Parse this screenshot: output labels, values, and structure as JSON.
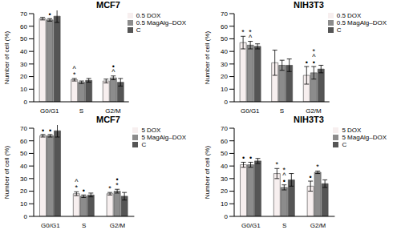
{
  "chart_data": [
    {
      "type": "bar",
      "title": "MCF7",
      "y_label": "Number of cell (%)",
      "categories": [
        "G0/G1",
        "S",
        "G2/M"
      ],
      "ylim": [
        0,
        70
      ],
      "yticks": [
        0,
        10,
        20,
        30,
        40,
        50,
        60,
        70
      ],
      "grid": false,
      "legend": "top-right",
      "series": [
        {
          "name": "0.5 DOX",
          "color": "#f7efef",
          "values": [
            66,
            17.5,
            16.5
          ],
          "errors": [
            1,
            1,
            1.5
          ],
          "annotations": [
            [],
            [
              "*",
              "^"
            ],
            []
          ]
        },
        {
          "name": "0.5 MagAlg–DOX",
          "color": "#8c8c8c",
          "values": [
            65,
            15.5,
            19
          ],
          "errors": [
            1,
            1,
            1.5
          ],
          "annotations": [
            [
              "•"
            ],
            [],
            [
              "^",
              "•"
            ]
          ]
        },
        {
          "name": "C",
          "color": "#555555",
          "values": [
            68,
            17,
            15.5
          ],
          "errors": [
            5,
            1.5,
            3
          ],
          "annotations": [
            [],
            [],
            []
          ]
        }
      ]
    },
    {
      "type": "bar",
      "title": "NIH3T3",
      "y_label": "Number of cell (%)",
      "categories": [
        "G0/G1",
        "S",
        "G2/M"
      ],
      "ylim": [
        0,
        70
      ],
      "yticks": [
        0,
        10,
        20,
        30,
        40,
        50,
        60,
        70
      ],
      "grid": false,
      "legend": "top-right",
      "series": [
        {
          "name": "0.5 DOX",
          "color": "#f7efef",
          "values": [
            47,
            31,
            21
          ],
          "errors": [
            5,
            10,
            7
          ],
          "annotations": [
            [
              "*"
            ],
            [],
            [
              "•"
            ]
          ]
        },
        {
          "name": "0.5 MagAlg–DOX",
          "color": "#8c8c8c",
          "values": [
            45,
            29,
            23
          ],
          "errors": [
            3,
            4,
            5
          ],
          "annotations": [
            [
              "^",
              "*"
            ],
            [],
            [
              "•",
              "^",
              "*"
            ]
          ]
        },
        {
          "name": "C",
          "color": "#555555",
          "values": [
            44,
            29,
            26
          ],
          "errors": [
            2,
            5,
            3
          ],
          "annotations": [
            [],
            [],
            []
          ]
        }
      ]
    },
    {
      "type": "bar",
      "title": "MCF7",
      "y_label": "Number of cell (%)",
      "categories": [
        "G0/G1",
        "S",
        "G2/M"
      ],
      "ylim": [
        0,
        70
      ],
      "yticks": [
        0,
        10,
        20,
        30,
        40,
        50,
        60,
        70
      ],
      "grid": false,
      "legend": "top-right",
      "series": [
        {
          "name": "5 DOX",
          "color": "#f7efef",
          "values": [
            64,
            18,
            18
          ],
          "errors": [
            1,
            1.5,
            1
          ],
          "annotations": [
            [
              "•"
            ],
            [
              "*",
              "^"
            ],
            [
              "*"
            ]
          ]
        },
        {
          "name": "5 MagAlg–DOX",
          "color": "#8c8c8c",
          "values": [
            64,
            16,
            20
          ],
          "errors": [
            1,
            1,
            1.5
          ],
          "annotations": [
            [
              "•"
            ],
            [
              "•"
            ],
            [
              "*",
              "•"
            ]
          ]
        },
        {
          "name": "C",
          "color": "#555555",
          "values": [
            68,
            17,
            16
          ],
          "errors": [
            5,
            1.5,
            3
          ],
          "annotations": [
            [],
            [],
            []
          ]
        }
      ]
    },
    {
      "type": "bar",
      "title": "NIH3T3",
      "y_label": "Number of cell (%)",
      "categories": [
        "G0/G1",
        "S",
        "G2/M"
      ],
      "ylim": [
        0,
        70
      ],
      "yticks": [
        0,
        10,
        20,
        30,
        40,
        50,
        60,
        70
      ],
      "grid": false,
      "legend": "top-right",
      "series": [
        {
          "name": "5 DOX",
          "color": "#f7efef",
          "values": [
            41,
            34,
            24
          ],
          "errors": [
            2,
            4,
            4
          ],
          "annotations": [
            [
              "•"
            ],
            [
              "*"
            ],
            [
              "•"
            ]
          ]
        },
        {
          "name": "5 MagAlg–DOX",
          "color": "#8c8c8c",
          "values": [
            41,
            23,
            35
          ],
          "errors": [
            2,
            2,
            1
          ],
          "annotations": [
            [
              "•"
            ],
            [
              "•",
              "^",
              "*"
            ],
            [
              "*"
            ]
          ]
        },
        {
          "name": "C",
          "color": "#555555",
          "values": [
            44,
            29,
            26
          ],
          "errors": [
            2,
            5,
            3
          ],
          "annotations": [
            [],
            [],
            []
          ]
        }
      ]
    }
  ]
}
